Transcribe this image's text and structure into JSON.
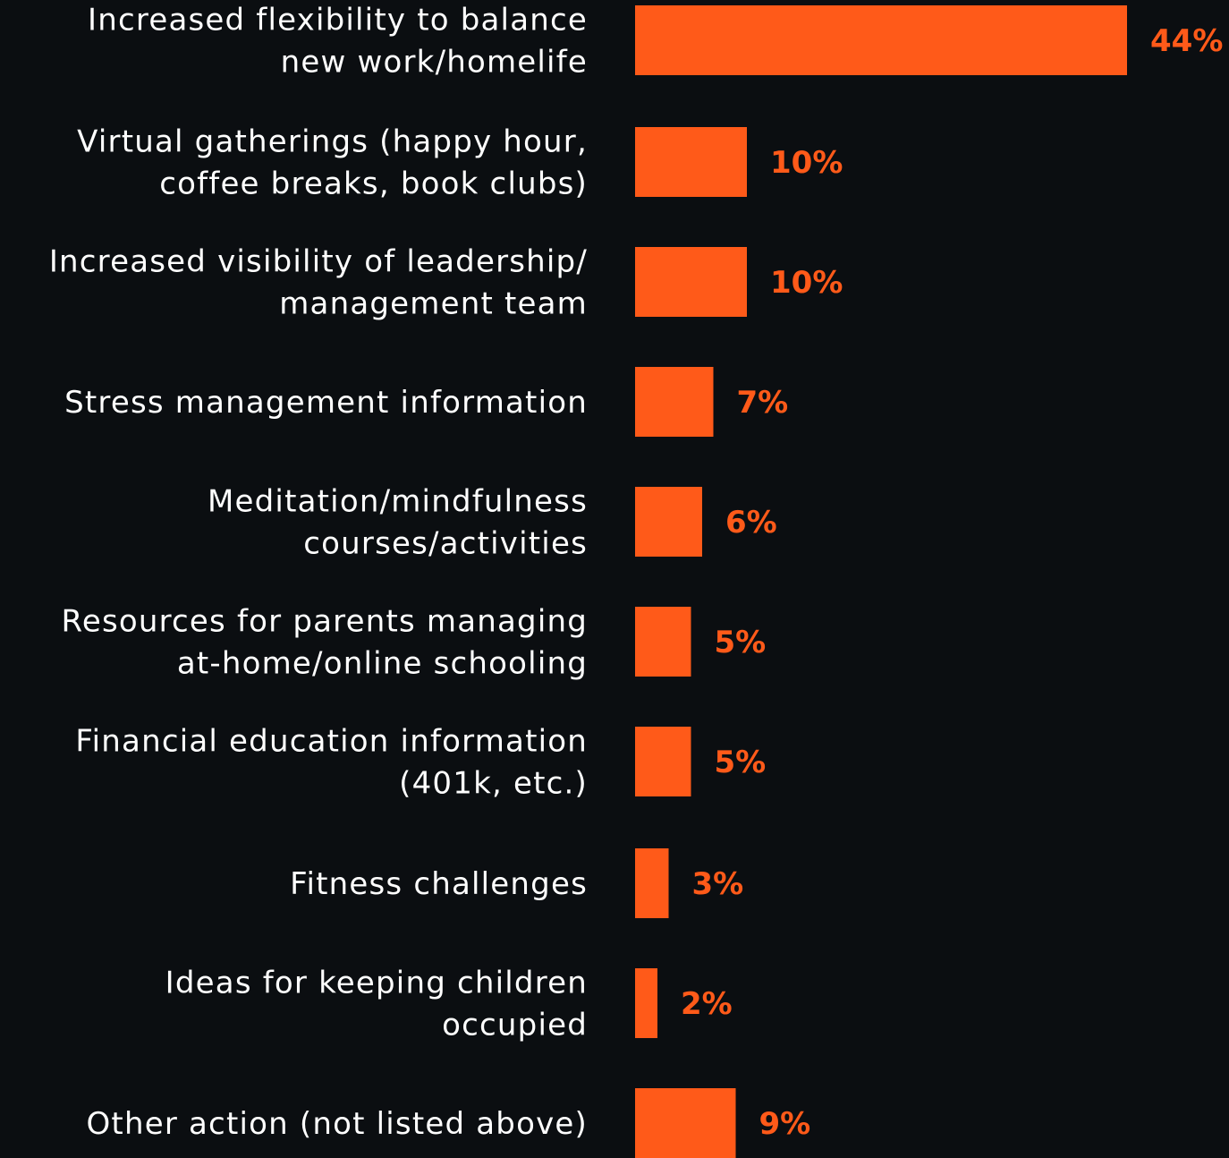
{
  "chart_data": {
    "type": "bar",
    "orientation": "horizontal",
    "categories": [
      [
        "Increased flexibility to balance",
        "new work/homelife"
      ],
      [
        "Virtual gatherings (happy hour,",
        "coffee breaks, book clubs)"
      ],
      [
        "Increased visibility of leadership/",
        "management team"
      ],
      [
        "Stress management information"
      ],
      [
        "Meditation/mindfulness",
        "courses/activities"
      ],
      [
        "Resources for parents managing",
        "at-home/online schooling"
      ],
      [
        "Financial education information",
        "(401k, etc.)"
      ],
      [
        "Fitness challenges"
      ],
      [
        "Ideas for keeping children",
        "occupied"
      ],
      [
        "Other action (not listed above)"
      ]
    ],
    "values": [
      44,
      10,
      10,
      7,
      6,
      5,
      5,
      3,
      2,
      9
    ],
    "value_labels": [
      "44%",
      "10%",
      "10%",
      "7%",
      "6%",
      "5%",
      "5%",
      "3%",
      "2%",
      "9%"
    ],
    "bar_color": "#ff5a19",
    "label_color": "#ffffff",
    "value_label_color": "#ff5a19",
    "background": "#0b0e11",
    "legend": "none",
    "grid": false
  }
}
